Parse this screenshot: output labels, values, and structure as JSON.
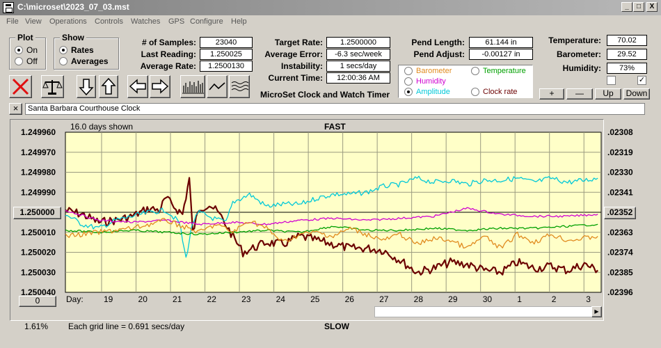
{
  "window": {
    "title": "C:\\microset\\2023_07_03.mst",
    "btn_min": "_",
    "btn_max": "□",
    "btn_close": "X"
  },
  "menu": [
    "File",
    "View",
    "Operations",
    "Controls",
    "Watches",
    "GPS",
    "Configure",
    "Help"
  ],
  "plot_group": {
    "title": "Plot",
    "on": "On",
    "off": "Off",
    "selected": "On"
  },
  "show_group": {
    "title": "Show",
    "rates": "Rates",
    "averages": "Averages",
    "selected": "Rates"
  },
  "stats": {
    "samples_label": "# of Samples:",
    "samples": "23040",
    "last_label": "Last Reading:",
    "last": "1.250025",
    "avg_rate_label": "Average Rate:",
    "avg_rate": "1.2500130",
    "target_label": "Target Rate:",
    "target": "1.2500000",
    "avg_err_label": "Average Error:",
    "avg_err": "-6.3 sec/week",
    "instab_label": "Instability:",
    "instab": "1 secs/day",
    "time_label": "Current Time:",
    "time": "12:00:36 AM",
    "app_name": "MicroSet Clock and Watch Timer",
    "pend_len_label": "Pend Length:",
    "pend_len": "61.144 in",
    "pend_adj_label": "Pend Adjust:",
    "pend_adj": "-0.00127 in",
    "temp_label": "Temperature:",
    "temp": "70.02",
    "baro_label": "Barometer:",
    "baro": "29.52",
    "hum_label": "Humidity:",
    "hum": "73%"
  },
  "channels": {
    "barometer": "Barometer",
    "temperature": "Temperature",
    "humidity": "Humidity",
    "amplitude": "Amplitude",
    "clockrate": "Clock rate",
    "selected": "Amplitude",
    "color_barometer": "#e08a1e",
    "color_temperature": "#00a000",
    "color_humidity": "#d000d0",
    "color_amplitude": "#00c8d8",
    "color_clockrate": "#6b0000"
  },
  "adjust_buttons": {
    "plus": "+",
    "minus": "—",
    "up": "Up",
    "down": "Down"
  },
  "toolbar_icons": [
    "stop-icon",
    "scale-icon",
    "arrow-down-icon",
    "arrow-up-icon",
    "arrow-left-icon",
    "arrow-right-icon",
    "bars-icon",
    "wave-icon",
    "multiwave-icon"
  ],
  "description": {
    "close": "×",
    "text": "Santa Barbara Courthouse Clock"
  },
  "plot": {
    "days_shown": "16.0 days shown",
    "fast": "FAST",
    "slow": "SLOW",
    "left_center": "1.250000",
    "right_center": ".02352",
    "bottom_left_btn": "0",
    "pct": "1.61%",
    "grid_note": "Each grid line = 0.691 secs/day",
    "day_label": "Day:"
  },
  "chart_data": {
    "type": "line",
    "title": "",
    "xlabel": "Day:",
    "x_ticks": [
      "19",
      "20",
      "21",
      "22",
      "23",
      "24",
      "25",
      "26",
      "27",
      "28",
      "29",
      "30",
      "1",
      "2",
      "3"
    ],
    "y_left_ticks": [
      "1.249960",
      "1.249970",
      "1.249980",
      "1.249990",
      "1.250000",
      "1.250010",
      "1.250020",
      "1.250030",
      "1.250040"
    ],
    "y_right_ticks": [
      ".02308",
      ".02319",
      ".02330",
      ".02341",
      ".02352",
      ".02363",
      ".02374",
      ".02385",
      ".02396"
    ],
    "ylim": [
      1.24996,
      1.25004
    ],
    "xlim": [
      0,
      16
    ],
    "grid": true,
    "series": [
      {
        "key": "clockrate",
        "color": "#6b0000",
        "width": 2.2,
        "points": [
          [
            0,
            1.249999
          ],
          [
            0.5,
            1.250001
          ],
          [
            1,
            1.250005
          ],
          [
            1.5,
            1.250004
          ],
          [
            2,
            1.250002
          ],
          [
            2.5,
            1.249998
          ],
          [
            2.8,
            1.249999
          ],
          [
            3,
            1.249993
          ],
          [
            3.3,
            1.249998
          ],
          [
            3.5,
            1.250001
          ],
          [
            3.7,
            1.249983
          ],
          [
            3.8,
            1.25001
          ],
          [
            4,
            1.249998
          ],
          [
            4.3,
            1.249996
          ],
          [
            4.6,
            1.250001
          ],
          [
            5,
            1.250012
          ],
          [
            5.3,
            1.25002
          ],
          [
            5.6,
            1.250018
          ],
          [
            6,
            1.250015
          ],
          [
            6.5,
            1.250016
          ],
          [
            7,
            1.250012
          ],
          [
            7.5,
            1.250014
          ],
          [
            8,
            1.250016
          ],
          [
            8.5,
            1.250018
          ],
          [
            9,
            1.250018
          ],
          [
            9.5,
            1.250019
          ],
          [
            10,
            1.250024
          ],
          [
            10.5,
            1.25003
          ],
          [
            11,
            1.250028
          ],
          [
            11.5,
            1.250025
          ],
          [
            12,
            1.250026
          ],
          [
            12.5,
            1.250029
          ],
          [
            13,
            1.25003
          ],
          [
            13.5,
            1.250025
          ],
          [
            14,
            1.250028
          ],
          [
            14.5,
            1.250027
          ],
          [
            15,
            1.250029
          ],
          [
            15.5,
            1.250026
          ],
          [
            15.9,
            1.250029
          ]
        ]
      },
      {
        "key": "amplitude",
        "color": "#00c8d8",
        "width": 1.3,
        "points": [
          [
            0,
            1.250001
          ],
          [
            0.5,
            1.250006
          ],
          [
            1,
            1.250008
          ],
          [
            1.5,
            1.250004
          ],
          [
            2,
            1.250002
          ],
          [
            2.5,
            1.25
          ],
          [
            3,
            1.249999
          ],
          [
            3.4,
            1.250005
          ],
          [
            3.6,
            1.250023
          ],
          [
            3.8,
            1.250005
          ],
          [
            4,
            1.25
          ],
          [
            4.4,
            1.250003
          ],
          [
            4.8,
            1.250005
          ],
          [
            5,
            1.249995
          ],
          [
            5.5,
            1.249991
          ],
          [
            6,
            1.249997
          ],
          [
            6.5,
            1.249996
          ],
          [
            7,
            1.249996
          ],
          [
            7.5,
            1.249993
          ],
          [
            8,
            1.249991
          ],
          [
            8.5,
            1.249991
          ],
          [
            9,
            1.24999
          ],
          [
            9.5,
            1.249987
          ],
          [
            10,
            1.249986
          ],
          [
            10.5,
            1.249983
          ],
          [
            11,
            1.249985
          ],
          [
            11.5,
            1.249984
          ],
          [
            12,
            1.249986
          ],
          [
            12.5,
            1.249984
          ],
          [
            13,
            1.249984
          ],
          [
            13.5,
            1.249983
          ],
          [
            14,
            1.249985
          ],
          [
            14.5,
            1.249983
          ],
          [
            15,
            1.249985
          ],
          [
            15.5,
            1.249984
          ],
          [
            15.9,
            1.249983
          ]
        ]
      },
      {
        "key": "humidity",
        "color": "#d000d0",
        "width": 1.3,
        "points": [
          [
            0,
            1.249999
          ],
          [
            1,
            1.250004
          ],
          [
            2,
            1.250005
          ],
          [
            3,
            1.250004
          ],
          [
            4,
            1.250006
          ],
          [
            5,
            1.250005
          ],
          [
            6,
            1.250006
          ],
          [
            7,
            1.250004
          ],
          [
            8,
            1.250003
          ],
          [
            9,
            1.250004
          ],
          [
            10,
            1.250003
          ],
          [
            11,
            1.250002
          ],
          [
            12,
            1.249998
          ],
          [
            13,
            1.250001
          ],
          [
            14,
            1.250002
          ],
          [
            15,
            1.250002
          ],
          [
            15.9,
            1.250001
          ]
        ]
      },
      {
        "key": "temperature",
        "color": "#00a000",
        "width": 1.3,
        "points": [
          [
            0,
            1.250009
          ],
          [
            1,
            1.25001
          ],
          [
            2,
            1.250009
          ],
          [
            3,
            1.25001
          ],
          [
            4,
            1.250011
          ],
          [
            5,
            1.25001
          ],
          [
            6,
            1.250009
          ],
          [
            7,
            1.25001
          ],
          [
            8,
            1.250007
          ],
          [
            9,
            1.250009
          ],
          [
            10,
            1.250009
          ],
          [
            11,
            1.250008
          ],
          [
            12,
            1.250009
          ],
          [
            13,
            1.250008
          ],
          [
            14,
            1.250008
          ],
          [
            15,
            1.250007
          ],
          [
            15.9,
            1.250006
          ]
        ]
      },
      {
        "key": "barometer",
        "color": "#e08a1e",
        "width": 1.3,
        "points": [
          [
            0,
            1.250012
          ],
          [
            1,
            1.25001
          ],
          [
            2,
            1.250008
          ],
          [
            3,
            1.250004
          ],
          [
            4,
            1.25001
          ],
          [
            4.5,
            1.250006
          ],
          [
            5,
            1.25001
          ],
          [
            5.5,
            1.250004
          ],
          [
            6,
            1.250008
          ],
          [
            6.5,
            1.250015
          ],
          [
            7,
            1.250011
          ],
          [
            7.5,
            1.25001
          ],
          [
            8,
            1.250012
          ],
          [
            8.5,
            1.250008
          ],
          [
            9,
            1.250011
          ],
          [
            9.5,
            1.250014
          ],
          [
            10,
            1.250011
          ],
          [
            10.5,
            1.250016
          ],
          [
            11,
            1.250013
          ],
          [
            11.5,
            1.250014
          ],
          [
            12,
            1.250018
          ],
          [
            12.5,
            1.250012
          ],
          [
            13,
            1.250018
          ],
          [
            13.5,
            1.250011
          ],
          [
            14,
            1.250015
          ],
          [
            14.5,
            1.250011
          ],
          [
            15,
            1.250014
          ],
          [
            15.5,
            1.250013
          ],
          [
            15.9,
            1.250012
          ]
        ]
      }
    ]
  }
}
